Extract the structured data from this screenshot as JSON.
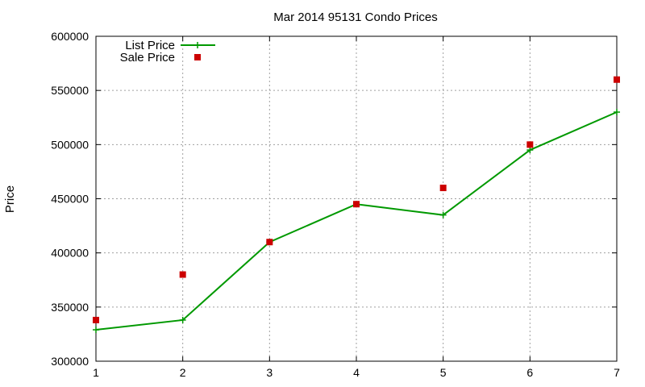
{
  "chart_data": {
    "type": "line",
    "title": "Mar 2014 95131 Condo Prices",
    "xlabel": "",
    "ylabel": "Price",
    "x": [
      1,
      2,
      3,
      4,
      5,
      6,
      7
    ],
    "xlim": [
      1,
      7
    ],
    "ylim": [
      300000,
      600000
    ],
    "xticks": [
      1,
      2,
      3,
      4,
      5,
      6,
      7
    ],
    "yticks": [
      300000,
      350000,
      400000,
      450000,
      500000,
      550000,
      600000
    ],
    "grid": true,
    "legend_position": "top-left",
    "series": [
      {
        "name": "List Price",
        "style": "line-with-plus-markers",
        "color": "#009900",
        "values": [
          329000,
          338000,
          410000,
          445000,
          435000,
          495000,
          530000
        ]
      },
      {
        "name": "Sale Price",
        "style": "square-markers",
        "color": "#cc0000",
        "values": [
          338000,
          380000,
          410000,
          445000,
          460000,
          500000,
          560000
        ]
      }
    ]
  }
}
